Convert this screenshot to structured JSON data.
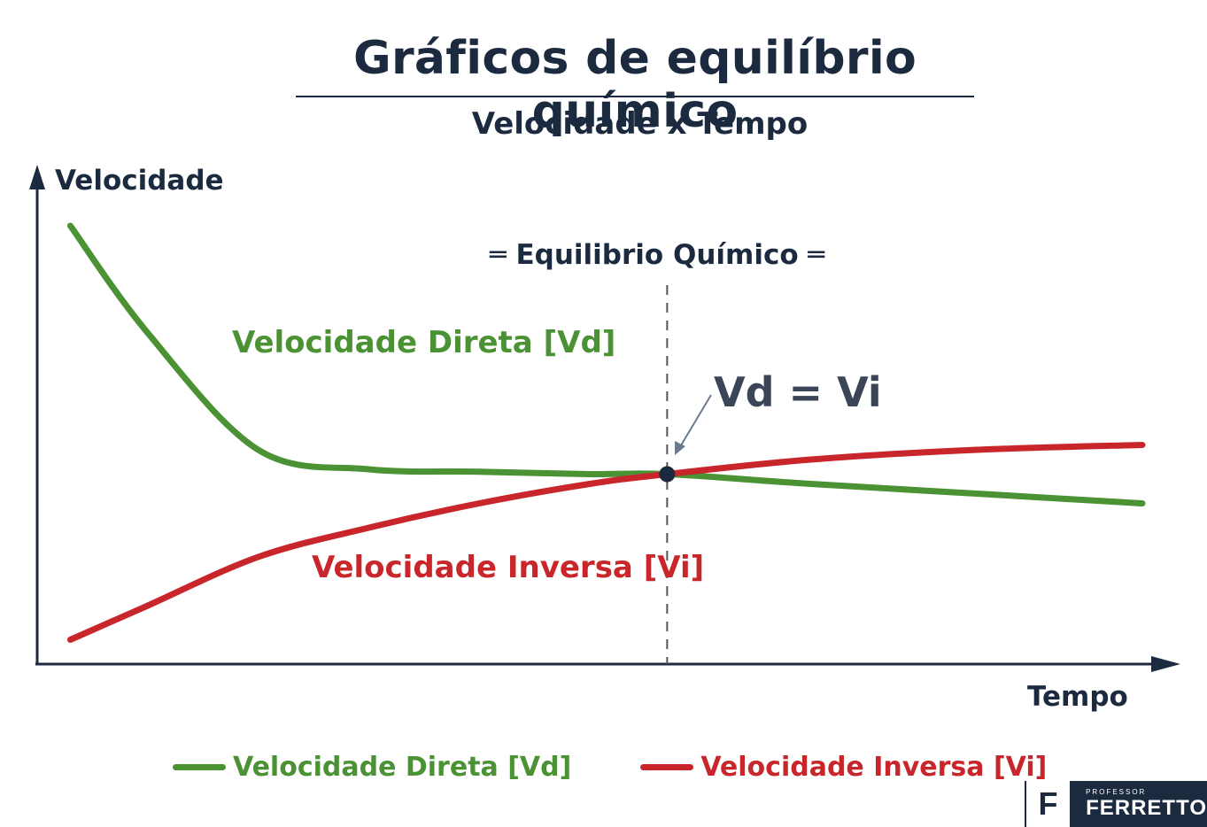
{
  "header": {
    "title": "Gráficos de equilíbrio químico",
    "subtitle": "Velocidade x Tempo"
  },
  "chart_data": {
    "type": "line",
    "ylabel": "Velocidade",
    "xlabel": "Tempo",
    "x_ticks": "none",
    "y_ticks": "none",
    "grid": false,
    "legend_position": "bottom",
    "equilibrium": {
      "label": "═ Equilibrio Químico ═",
      "point_label": "Vd = Vi",
      "x": 0.57
    },
    "series": [
      {
        "name": "Velocidade Direta [Vd]",
        "inline_label": "Velocidade Direta [Vd]",
        "color": "#4a9233",
        "x": [
          0.03,
          0.1,
          0.2,
          0.3,
          0.4,
          0.5,
          0.57,
          0.7,
          0.85,
          1.0
        ],
        "y": [
          0.9,
          0.68,
          0.44,
          0.4,
          0.395,
          0.39,
          0.39,
          0.37,
          0.35,
          0.33
        ]
      },
      {
        "name": "Velocidade Inversa [Vi]",
        "inline_label": "Velocidade Inversa [Vi]",
        "color": "#c8262b",
        "x": [
          0.03,
          0.1,
          0.2,
          0.3,
          0.4,
          0.5,
          0.57,
          0.7,
          0.85,
          1.0
        ],
        "y": [
          0.05,
          0.12,
          0.22,
          0.28,
          0.33,
          0.37,
          0.39,
          0.42,
          0.44,
          0.45
        ]
      }
    ]
  },
  "legend": {
    "items": [
      {
        "label": "Velocidade Direta [Vd]",
        "color": "#4a9233"
      },
      {
        "label": "Velocidade Inversa [Vi]",
        "color": "#c8262b"
      }
    ]
  },
  "logo": {
    "mark": "F",
    "small": "PROFESSOR",
    "big": "FERRETTO"
  }
}
